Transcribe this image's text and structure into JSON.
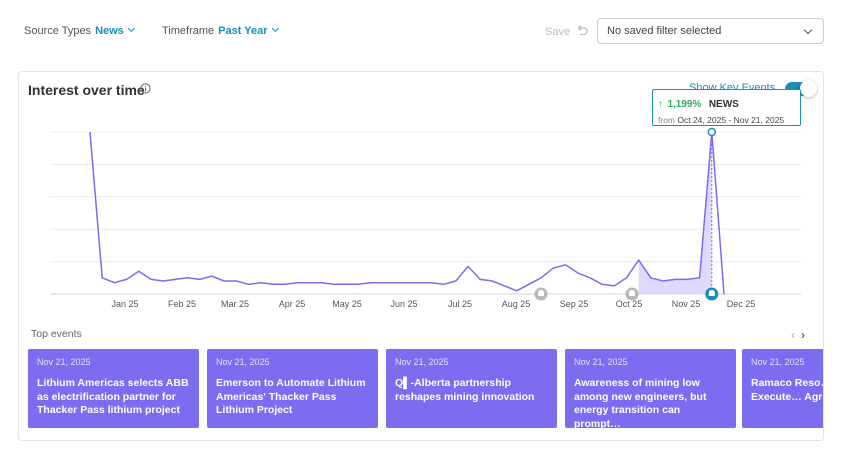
{
  "filters": {
    "source_label": "Source Types",
    "source_value": "News",
    "timeframe_label": "Timeframe",
    "timeframe_value": "Past Year",
    "save_label": "Save",
    "saved_filter_placeholder": "No saved filter selected"
  },
  "panel": {
    "title": "Interest over time",
    "show_key_events_label": "Show Key Events",
    "tooltip": {
      "percent": "1,199%",
      "type": "NEWS",
      "from_label": "from",
      "range": "Oct 24, 2025 - Nov 21, 2025"
    }
  },
  "chart_data": {
    "type": "line",
    "x_ticks": [
      "Jan 25",
      "Feb 25",
      "Mar 25",
      "Apr 25",
      "May 25",
      "Jun 25",
      "Jul 25",
      "Aug 25",
      "Sep 25",
      "Oct 25",
      "Nov 25",
      "Dec 25"
    ],
    "grid": true,
    "series": [
      {
        "values": [
          100,
          10,
          7,
          9,
          14,
          9,
          8,
          9,
          10,
          9,
          11,
          8,
          8,
          6,
          7,
          6,
          6,
          7,
          7,
          7,
          6,
          6,
          6,
          7,
          7,
          7,
          7,
          7,
          7,
          6,
          8,
          17,
          9,
          8,
          5,
          2,
          6,
          10,
          16,
          18,
          13,
          10,
          6,
          5,
          10,
          21,
          10,
          8,
          9,
          9,
          10,
          100,
          0
        ],
        "highlighted_period": "Oct 24, 2025 - Nov 21, 2025"
      }
    ],
    "key_event_markers": [
      "Aug 25",
      "Oct 25",
      "Nov 21, 2025"
    ]
  },
  "icons": {
    "info": "info-icon",
    "undo": "undo-icon",
    "bell": "bell-icon",
    "arrow_up": "arrow-up-icon"
  },
  "colors": {
    "accent": "#1a8fb5",
    "line": "#7b6cf0",
    "event_card": "#7b6cf0",
    "positive": "#2eae5c"
  },
  "top_events": {
    "heading": "Top events",
    "items": [
      {
        "date": "Nov 21, 2025",
        "title": "Lithium Americas selects ABB as electrification partner for Thacker Pass lithium project"
      },
      {
        "date": "Nov 21, 2025",
        "title": "Emerson to Automate Lithium Americas' Thacker Pass Lithium Project"
      },
      {
        "date": "Nov 21, 2025",
        "title": "Q▌-Alberta partnership reshapes mining innovation"
      },
      {
        "date": "Nov 21, 2025",
        "title": "Awareness of mining low among new engineers, but energy transition can prompt…"
      },
      {
        "date": "Nov 21, 2025",
        "title": "Ramaco Reso… NETL Execute… Agreement o…"
      }
    ]
  }
}
